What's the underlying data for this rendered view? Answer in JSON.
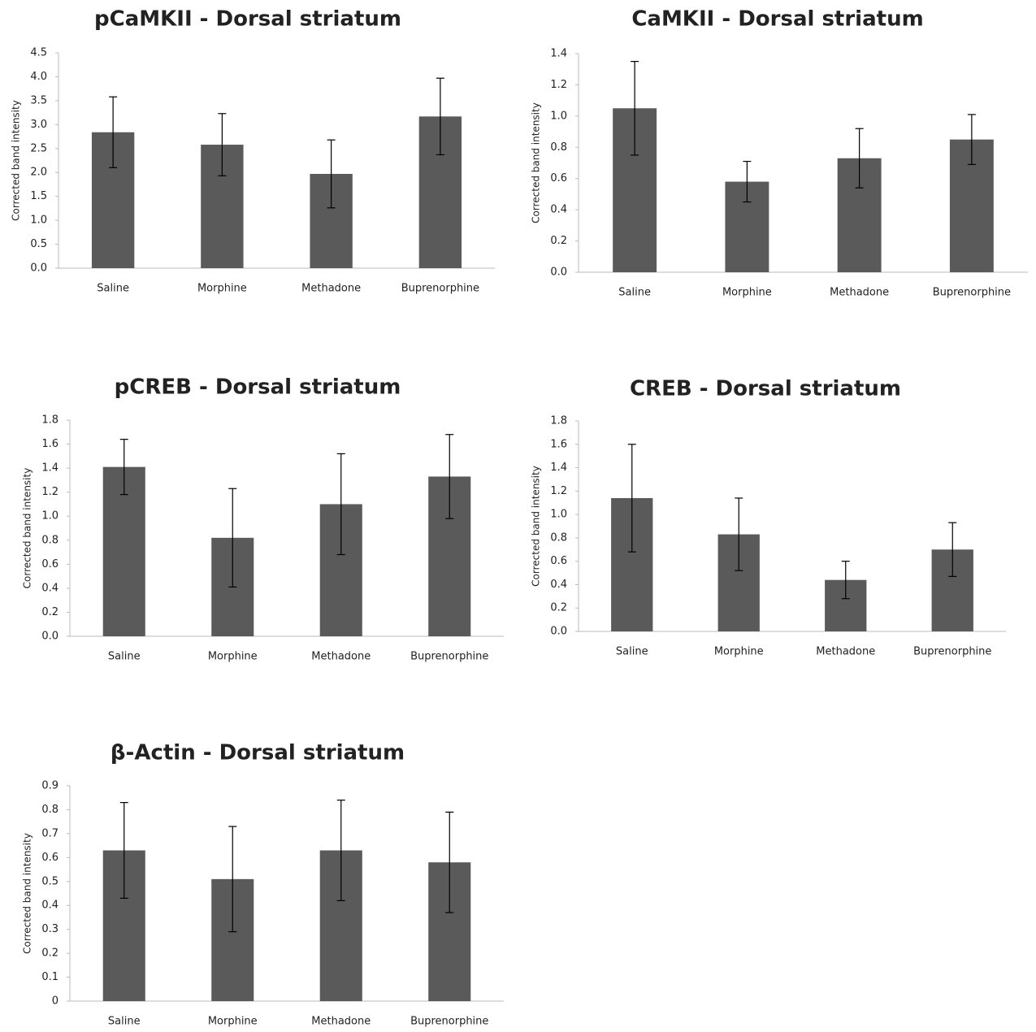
{
  "chart_data": [
    {
      "type": "bar",
      "title": "pCaMKII - Dorsal striatum",
      "y_label": "Corrected band intensity",
      "categories": [
        "Saline",
        "Morphine",
        "Methadone",
        "Buprenorphine"
      ],
      "values": [
        2.84,
        2.58,
        1.97,
        3.17
      ],
      "errors": [
        0.74,
        0.65,
        0.71,
        0.8
      ],
      "color": "#5a5a5a",
      "ylim": [
        0,
        4.5
      ],
      "yticks": [
        {
          "value": 0,
          "label": "0.0"
        },
        0.5,
        {
          "value": 1,
          "label": "1.0"
        },
        1.5,
        {
          "value": 2,
          "label": "2.0"
        },
        2.5,
        {
          "value": 3,
          "label": "3.0"
        },
        3.5,
        {
          "value": 4,
          "label": "4.0"
        },
        4.5
      ]
    },
    {
      "type": "bar",
      "title": "CaMKII - Dorsal striatum",
      "y_label": "Corrected band intensity",
      "categories": [
        "Saline",
        "Morphine",
        "Methadone",
        "Buprenorphine"
      ],
      "values": [
        1.05,
        0.58,
        0.73,
        0.85
      ],
      "errors": [
        0.3,
        0.13,
        0.19,
        0.16
      ],
      "color": "#5a5a5a",
      "ylim": [
        0,
        1.4
      ],
      "yticks": [
        {
          "value": 0,
          "label": "0.0"
        },
        0.2,
        0.4,
        0.6,
        0.8,
        {
          "value": 1,
          "label": "1.0"
        },
        1.2,
        1.4
      ]
    },
    {
      "type": "bar",
      "title": "pCREB - Dorsal striatum",
      "y_label": "Corrected band intensity",
      "categories": [
        "Saline",
        "Morphine",
        "Methadone",
        "Buprenorphine"
      ],
      "values": [
        1.41,
        0.82,
        1.1,
        1.33
      ],
      "errors": [
        0.23,
        0.41,
        0.42,
        0.35
      ],
      "color": "#5a5a5a",
      "ylim": [
        0,
        1.8
      ],
      "yticks": [
        {
          "value": 0,
          "label": "0.0"
        },
        0.2,
        0.4,
        0.6,
        0.8,
        {
          "value": 1,
          "label": "1.0"
        },
        1.2,
        1.4,
        1.6,
        1.8
      ]
    },
    {
      "type": "bar",
      "title": "CREB - Dorsal striatum",
      "y_label": "Corrected band intensity",
      "categories": [
        "Saline",
        "Morphine",
        "Methadone",
        "Buprenorphine"
      ],
      "values": [
        1.14,
        0.83,
        0.44,
        0.7
      ],
      "errors": [
        0.46,
        0.31,
        0.16,
        0.23
      ],
      "color": "#5a5a5a",
      "ylim": [
        0,
        1.8
      ],
      "yticks": [
        {
          "value": 0,
          "label": "0.0"
        },
        0.2,
        0.4,
        0.6,
        0.8,
        {
          "value": 1,
          "label": "1.0"
        },
        1.2,
        1.4,
        1.6,
        1.8
      ]
    },
    {
      "type": "bar",
      "title": "β-Actin - Dorsal striatum",
      "y_label": "Corrected band intensity",
      "categories": [
        "Saline",
        "Morphine",
        "Methadone",
        "Buprenorphine"
      ],
      "values": [
        0.63,
        0.51,
        0.63,
        0.58
      ],
      "errors": [
        0.2,
        0.22,
        0.21,
        0.21
      ],
      "color": "#5a5a5a",
      "ylim": [
        0,
        0.9
      ],
      "yticks": [
        0,
        0.1,
        0.2,
        0.3,
        0.4,
        0.5,
        0.6,
        0.7,
        0.8,
        0.9
      ]
    }
  ]
}
